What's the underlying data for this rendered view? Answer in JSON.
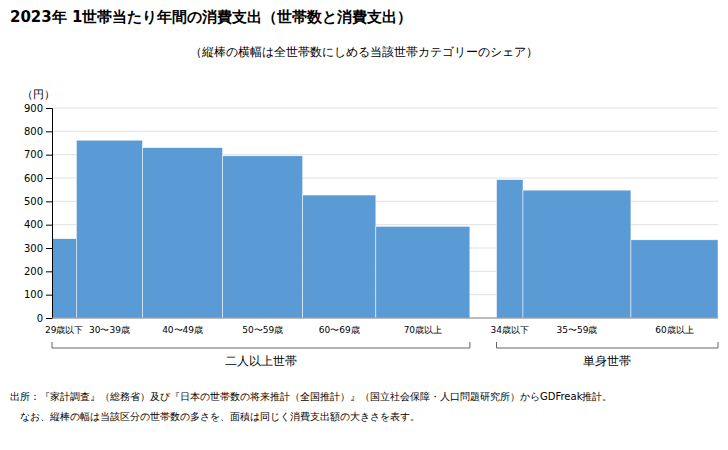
{
  "chart_data": {
    "type": "bar",
    "title": "2023年  1世帯当たり年間の消費支出（世帯数と消費支出）",
    "subtitle": "（縦棒の横幅は全世帯数にしめる当該世帯カテゴリーのシェア）",
    "ylabel": "（円）",
    "categories": [
      "29歳以下",
      "30〜39歳",
      "40〜49歳",
      "50〜59歳",
      "60〜69歳",
      "70歳以上",
      "34歳以下",
      "35〜59歳",
      "60歳以上"
    ],
    "values": [
      340,
      762,
      730,
      695,
      527,
      393,
      593,
      548,
      335
    ],
    "widths": [
      0.035,
      0.095,
      0.115,
      0.115,
      0.105,
      0.135,
      0.038,
      0.155,
      0.125
    ],
    "groups": [
      {
        "name": "二人以上世帯",
        "indices": [
          0,
          1,
          2,
          3,
          4,
          5
        ]
      },
      {
        "name": "単身世帯",
        "indices": [
          6,
          7,
          8
        ]
      }
    ],
    "color": "#5B9BD5",
    "ylim": [
      0,
      900
    ],
    "yticks": [
      0,
      100,
      200,
      300,
      400,
      500,
      600,
      700,
      800,
      900
    ],
    "grid": true,
    "annotations": [
      "出所：『家計調査』（総務省）及び『日本の世帯数の将来推計（全国推計）』（国立社会保障・人口問題研究所）からGDFreak推計。",
      "　なお、縦棒の幅は当該区分の世帯数の多さを、面積は同じく消費支出額の大きさを表す。"
    ]
  }
}
